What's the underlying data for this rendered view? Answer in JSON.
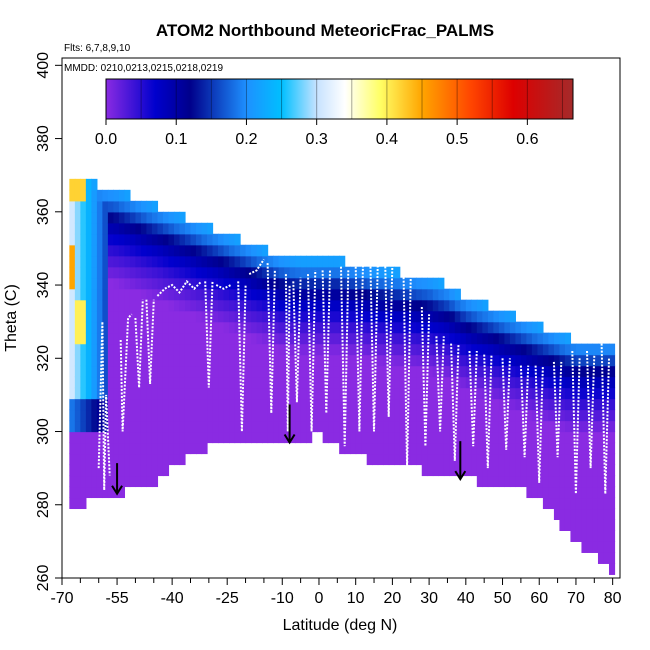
{
  "chart_data": {
    "type": "heatmap",
    "title": "ATOM2 Northbound MeteoricFrac_PALMS",
    "subtitle_flights": "Flts: 6,7,8,9,10",
    "subtitle_dates": "MMDD: 0210,0213,0215,0218,0219",
    "xlabel": "Latitude (deg N)",
    "ylabel": "Theta (C)",
    "xlim": [
      -70,
      82
    ],
    "ylim": [
      260,
      402
    ],
    "x_ticks_major": [
      -70,
      -55,
      -40,
      -25,
      -10,
      0,
      10,
      20,
      30,
      40,
      50,
      60,
      70,
      80
    ],
    "x_tick_labels": [
      "-70",
      "-55",
      "-40",
      "-25",
      "-10",
      "0",
      "10",
      "20",
      "30",
      "40",
      "50",
      "60",
      "70",
      "80"
    ],
    "x_ticks_minor": [
      -65,
      -60,
      -50,
      -45,
      -35,
      -30,
      -20,
      -15,
      -5,
      5,
      15,
      25,
      35,
      45,
      55,
      65,
      75
    ],
    "y_ticks": [
      260,
      280,
      300,
      320,
      340,
      360,
      380,
      400
    ],
    "y_tick_labels": [
      "260",
      "280",
      "300",
      "320",
      "340",
      "360",
      "380",
      "400"
    ],
    "colorbar": {
      "range": [
        0,
        0.665
      ],
      "ticks": [
        0,
        0.1,
        0.2,
        0.3,
        0.4,
        0.5,
        0.6
      ],
      "tick_labels": [
        "0.0",
        "0.1",
        "0.2",
        "0.3",
        "0.4",
        "0.5",
        "0.6"
      ],
      "stops": [
        {
          "v": 0.0,
          "color": "#8a2be2"
        },
        {
          "v": 0.07,
          "color": "#0000cd"
        },
        {
          "v": 0.12,
          "color": "#00008b"
        },
        {
          "v": 0.2,
          "color": "#1e90ff"
        },
        {
          "v": 0.25,
          "color": "#00bfff"
        },
        {
          "v": 0.3,
          "color": "#c6e2ff"
        },
        {
          "v": 0.34,
          "color": "#ffffff"
        },
        {
          "v": 0.39,
          "color": "#ffff66"
        },
        {
          "v": 0.45,
          "color": "#ffa500"
        },
        {
          "v": 0.52,
          "color": "#ff4500"
        },
        {
          "v": 0.58,
          "color": "#dd0000"
        },
        {
          "v": 0.665,
          "color": "#a52a2a"
        }
      ]
    },
    "field_envelope": {
      "lat": [
        -68,
        -64,
        -60,
        -55,
        -50,
        -45,
        -40,
        -35,
        -30,
        -25,
        -20,
        -15,
        -10,
        -5,
        0,
        5,
        10,
        15,
        20,
        25,
        30,
        35,
        40,
        45,
        50,
        55,
        60,
        65,
        70,
        75,
        80
      ],
      "theta_top": [
        370,
        369,
        367,
        366,
        364,
        362,
        360,
        358,
        356,
        354,
        352,
        350,
        348,
        347,
        347,
        347,
        346,
        345,
        344,
        343,
        342,
        340,
        337,
        335,
        333,
        331,
        329,
        327,
        325,
        325,
        325
      ],
      "theta_bottom": [
        277,
        280,
        282,
        283,
        284,
        285,
        290,
        294,
        296,
        297,
        297,
        297,
        297,
        298,
        299,
        296,
        293,
        292,
        292,
        290,
        289,
        288,
        287,
        286,
        285,
        284,
        282,
        276,
        270,
        266,
        262
      ],
      "gradient_upper_band": [
        {
          "dtheta": 0,
          "value": 0.22
        },
        {
          "dtheta": 4,
          "value": 0.18
        },
        {
          "dtheta": 8,
          "value": 0.12
        },
        {
          "dtheta": 12,
          "value": 0.08
        },
        {
          "dtheta": 18,
          "value": 0.04
        },
        {
          "dtheta": 26,
          "value": 0.0
        }
      ],
      "southern_high_region": {
        "lat_range": [
          -68,
          -57
        ],
        "theta_range": [
          300,
          370
        ],
        "value": 0.32
      },
      "southern_peak_values": [
        {
          "lat": -66,
          "theta": 368,
          "value": 0.42
        },
        {
          "lat": -65,
          "theta": 330,
          "value": 0.4
        },
        {
          "lat": -68,
          "theta": 345,
          "value": 0.45
        }
      ]
    },
    "flight_profiles": [
      {
        "lat": [
          -60,
          -59,
          -58.5,
          -58,
          -57
        ],
        "theta": [
          290,
          330,
          284,
          310,
          288
        ]
      },
      {
        "lat": [
          -54,
          -53.5,
          -52,
          -51
        ],
        "theta": [
          325,
          300,
          331,
          332
        ]
      },
      {
        "lat": [
          -50,
          -49,
          -48
        ],
        "theta": [
          331,
          312,
          336
        ]
      },
      {
        "lat": [
          -47,
          -46,
          -45
        ],
        "theta": [
          336,
          313,
          336
        ]
      },
      {
        "lat": [
          -44,
          -42,
          -40,
          -38,
          -36,
          -34,
          -32
        ],
        "theta": [
          337,
          339,
          340,
          338,
          341,
          339,
          341
        ]
      },
      {
        "lat": [
          -31,
          -30,
          -29
        ],
        "theta": [
          341,
          312,
          341
        ]
      },
      {
        "lat": [
          -28,
          -26,
          -24
        ],
        "theta": [
          340,
          339,
          340
        ]
      },
      {
        "lat": [
          -22,
          -21,
          -20
        ],
        "theta": [
          341,
          300,
          340
        ]
      },
      {
        "lat": [
          -19,
          -17,
          -15
        ],
        "theta": [
          343,
          344,
          347
        ]
      },
      {
        "lat": [
          -14,
          -13,
          -12
        ],
        "theta": [
          346,
          305,
          344
        ]
      },
      {
        "lat": [
          -9,
          -8.5,
          -8
        ],
        "theta": [
          343,
          300,
          340
        ]
      },
      {
        "lat": [
          -7,
          -6,
          -5
        ],
        "theta": [
          341,
          308,
          342
        ]
      },
      {
        "lat": [
          -3,
          -2,
          -1
        ],
        "theta": [
          343,
          300,
          344
        ]
      },
      {
        "lat": [
          1,
          2,
          3
        ],
        "theta": [
          344,
          305,
          344
        ]
      },
      {
        "lat": [
          6,
          7,
          8
        ],
        "theta": [
          345,
          296,
          344
        ]
      },
      {
        "lat": [
          10,
          11,
          12
        ],
        "theta": [
          345,
          300,
          346
        ]
      },
      {
        "lat": [
          14,
          15,
          16,
          17
        ],
        "theta": [
          346,
          300,
          345,
          346
        ]
      },
      {
        "lat": [
          18,
          19,
          20
        ],
        "theta": [
          347,
          304,
          346
        ]
      },
      {
        "lat": [
          23,
          24,
          25
        ],
        "theta": [
          345,
          290,
          343
        ]
      },
      {
        "lat": [
          28,
          29,
          30
        ],
        "theta": [
          334,
          296,
          332
        ]
      },
      {
        "lat": [
          32,
          33,
          34
        ],
        "theta": [
          326,
          300,
          326
        ]
      },
      {
        "lat": [
          36,
          37,
          38
        ],
        "theta": [
          324,
          292,
          324
        ]
      },
      {
        "lat": [
          41,
          42,
          43
        ],
        "theta": [
          322,
          296,
          322
        ]
      },
      {
        "lat": [
          45,
          46,
          47
        ],
        "theta": [
          321,
          290,
          321
        ]
      },
      {
        "lat": [
          50,
          51,
          52
        ],
        "theta": [
          320,
          295,
          320
        ]
      },
      {
        "lat": [
          55,
          56,
          57
        ],
        "theta": [
          318,
          293,
          318
        ]
      },
      {
        "lat": [
          59,
          60,
          61
        ],
        "theta": [
          318,
          286,
          318
        ]
      },
      {
        "lat": [
          64,
          65,
          66
        ],
        "theta": [
          319,
          293,
          319
        ]
      },
      {
        "lat": [
          69,
          70,
          71
        ],
        "theta": [
          322,
          283,
          320
        ]
      },
      {
        "lat": [
          73,
          74,
          75
        ],
        "theta": [
          322,
          290,
          321
        ]
      },
      {
        "lat": [
          77,
          78,
          79
        ],
        "theta": [
          324,
          283,
          320
        ]
      }
    ],
    "arrows": [
      {
        "lat": -55,
        "theta_from": 287,
        "theta_to": 283
      },
      {
        "lat": -8,
        "theta_from": 303,
        "theta_to": 297
      },
      {
        "lat": 38.5,
        "theta_from": 293,
        "theta_to": 287
      }
    ]
  }
}
